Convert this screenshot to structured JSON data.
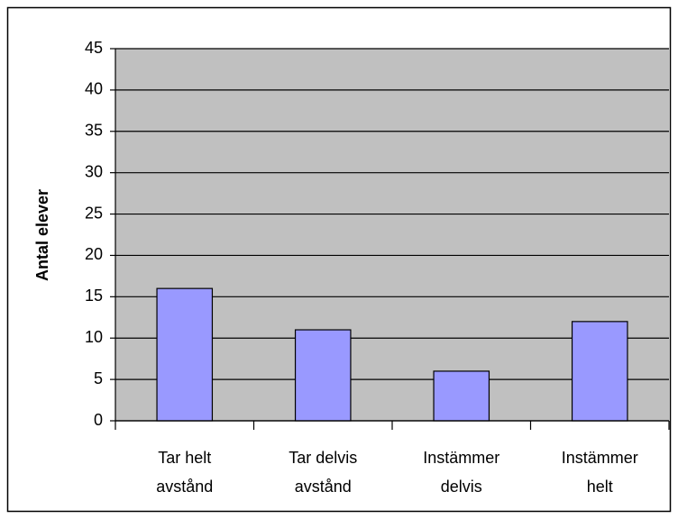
{
  "chart_data": {
    "type": "bar",
    "y_label": "Antal elever",
    "categories": [
      "Tar helt avstånd",
      "Tar delvis avstånd",
      "Instämmer delvis",
      "Instämmer helt"
    ],
    "values": [
      16,
      11,
      6,
      12
    ],
    "color": "#9999ff",
    "plot_background": "#c0c0c0",
    "ylim": [
      0,
      45
    ],
    "yticks": [
      0,
      5,
      10,
      15,
      20,
      25,
      30,
      35,
      40,
      45
    ],
    "grid": true
  }
}
